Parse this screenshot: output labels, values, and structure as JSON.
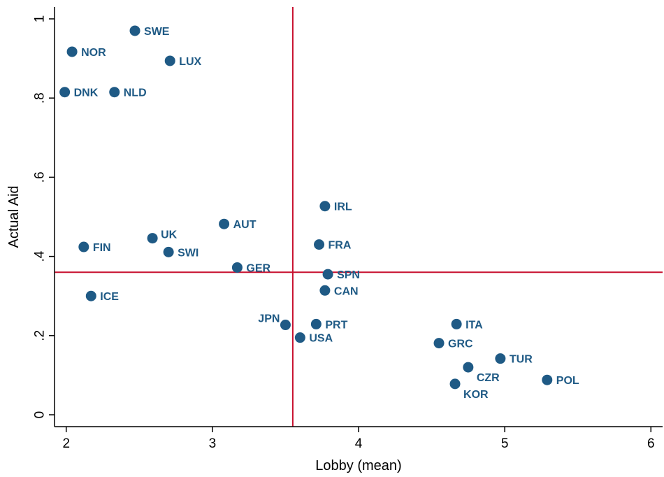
{
  "chart_data": {
    "type": "scatter",
    "xlabel": "Lobby (mean)",
    "ylabel": "Actual Aid",
    "xlim": [
      1.92,
      6.08
    ],
    "ylim": [
      -0.03,
      1.03
    ],
    "xticks": [
      2,
      3,
      4,
      5,
      6
    ],
    "yticks": [
      0,
      0.2,
      0.4,
      0.6,
      0.8,
      1
    ],
    "ytick_labels": [
      "0",
      ".2",
      ".4",
      ".6",
      ".8",
      "1"
    ],
    "grid": false,
    "marker_color": "#1f5a85",
    "label_color": "#1f5a85",
    "reference_lines": {
      "color": "#c8102e",
      "x": 3.55,
      "y": 0.36
    },
    "points": [
      {
        "label": "SWE",
        "x": 2.47,
        "y": 0.97,
        "pos": "right"
      },
      {
        "label": "NOR",
        "x": 2.04,
        "y": 0.917,
        "pos": "right"
      },
      {
        "label": "LUX",
        "x": 2.71,
        "y": 0.894,
        "pos": "right"
      },
      {
        "label": "DNK",
        "x": 1.99,
        "y": 0.815,
        "pos": "right"
      },
      {
        "label": "NLD",
        "x": 2.33,
        "y": 0.815,
        "pos": "right"
      },
      {
        "label": "IRL",
        "x": 3.77,
        "y": 0.527,
        "pos": "right"
      },
      {
        "label": "AUT",
        "x": 3.08,
        "y": 0.482,
        "pos": "right"
      },
      {
        "label": "UK",
        "x": 2.59,
        "y": 0.446,
        "pos": "right-up"
      },
      {
        "label": "FIN",
        "x": 2.12,
        "y": 0.424,
        "pos": "right"
      },
      {
        "label": "FRA",
        "x": 3.73,
        "y": 0.43,
        "pos": "right"
      },
      {
        "label": "SWI",
        "x": 2.7,
        "y": 0.411,
        "pos": "right"
      },
      {
        "label": "GER",
        "x": 3.17,
        "y": 0.372,
        "pos": "right"
      },
      {
        "label": "SPN",
        "x": 3.79,
        "y": 0.355,
        "pos": "right"
      },
      {
        "label": "CAN",
        "x": 3.77,
        "y": 0.314,
        "pos": "right"
      },
      {
        "label": "ICE",
        "x": 2.17,
        "y": 0.3,
        "pos": "right"
      },
      {
        "label": "JPN",
        "x": 3.5,
        "y": 0.227,
        "pos": "left-up"
      },
      {
        "label": "PRT",
        "x": 3.71,
        "y": 0.229,
        "pos": "right"
      },
      {
        "label": "ITA",
        "x": 4.67,
        "y": 0.229,
        "pos": "right"
      },
      {
        "label": "USA",
        "x": 3.6,
        "y": 0.195,
        "pos": "right"
      },
      {
        "label": "GRC",
        "x": 4.55,
        "y": 0.181,
        "pos": "right"
      },
      {
        "label": "TUR",
        "x": 4.97,
        "y": 0.142,
        "pos": "right"
      },
      {
        "label": "CZR",
        "x": 4.75,
        "y": 0.12,
        "pos": "right-down"
      },
      {
        "label": "POL",
        "x": 5.29,
        "y": 0.088,
        "pos": "right"
      },
      {
        "label": "KOR",
        "x": 4.66,
        "y": 0.078,
        "pos": "right-down"
      }
    ]
  }
}
